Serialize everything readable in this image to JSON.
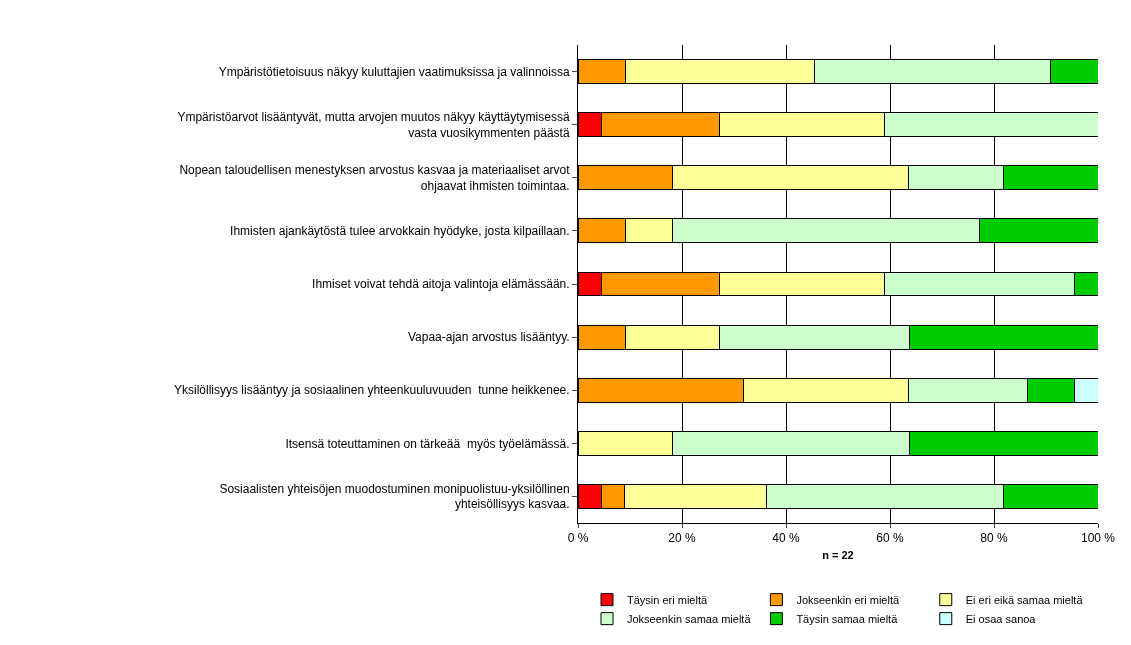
{
  "chart_data": {
    "type": "bar",
    "orientation": "horizontal",
    "stacked": true,
    "xlabel": "n = 22",
    "categories": [
      "Ympäristötietoisuus näkyy kuluttajien vaatimuksissa ja valinnoissa",
      "Ympäristöarvot lisääntyvät, mutta arvojen muutos näkyy käyttäytymisessä vasta vuosikymmenten päästä",
      "Nopean taloudellisen menestyksen arvostus kasvaa ja materiaaliset arvot ohjaavat ihmisten toimintaa.",
      "Ihmisten ajankäytöstä tulee arvokkain hyödyke, josta kilpaillaan.",
      "Ihmiset voivat tehdä aitoja valintoja elämässään.",
      "Vapaa-ajan arvostus lisääntyy.",
      "Yksilöllisyys lisääntyy ja sosiaalinen yhteenkuuluvuuden  tunne heikkenee.",
      "Itsensä toteuttaminen on tärkeää  myös työelämässä.",
      "Sosiaalisten yhteisöjen muodostuminen monipuolistuu-yksilöllinen yhteisöllisyys kasvaa."
    ],
    "series": [
      {
        "name": "Täysin eri mieltä",
        "color": "#ff0000",
        "values": [
          null,
          4.5,
          null,
          null,
          4.5,
          null,
          null,
          null,
          4.5
        ]
      },
      {
        "name": "Jokseenkin eri mieltä",
        "color": "#ff9900",
        "values": [
          9.1,
          22.7,
          18.2,
          9.1,
          22.7,
          9.1,
          31.8,
          null,
          4.5
        ]
      },
      {
        "name": "Ei eri eikä samaa mieltä",
        "color": "#ffff99",
        "values": [
          36.4,
          31.8,
          45.4,
          9.1,
          31.8,
          18.2,
          31.8,
          18.2,
          27.3
        ]
      },
      {
        "name": "Jokseenkin samaa mieltä",
        "color": "#ccffcc",
        "values": [
          45.4,
          41.0,
          18.2,
          59.1,
          36.5,
          36.4,
          22.8,
          45.5,
          45.5
        ]
      },
      {
        "name": "Täysin samaa mieltä",
        "color": "#00cc00",
        "values": [
          9.1,
          null,
          18.2,
          22.7,
          4.5,
          36.3,
          9.1,
          36.3,
          18.2
        ]
      },
      {
        "name": "Ei osaa sanoa",
        "color": "#ccffff",
        "values": [
          null,
          null,
          null,
          null,
          null,
          null,
          4.5,
          null,
          null
        ]
      }
    ],
    "xlim": [
      0,
      100
    ],
    "xticks": [
      {
        "value": 0,
        "label": "0 %"
      },
      {
        "value": 20,
        "label": "20 %"
      },
      {
        "value": 40,
        "label": "40 %"
      },
      {
        "value": 60,
        "label": "60 %"
      },
      {
        "value": 80,
        "label": "80 %"
      },
      {
        "value": 100,
        "label": "100 %"
      }
    ],
    "grid": "x",
    "legend": "bottom"
  }
}
